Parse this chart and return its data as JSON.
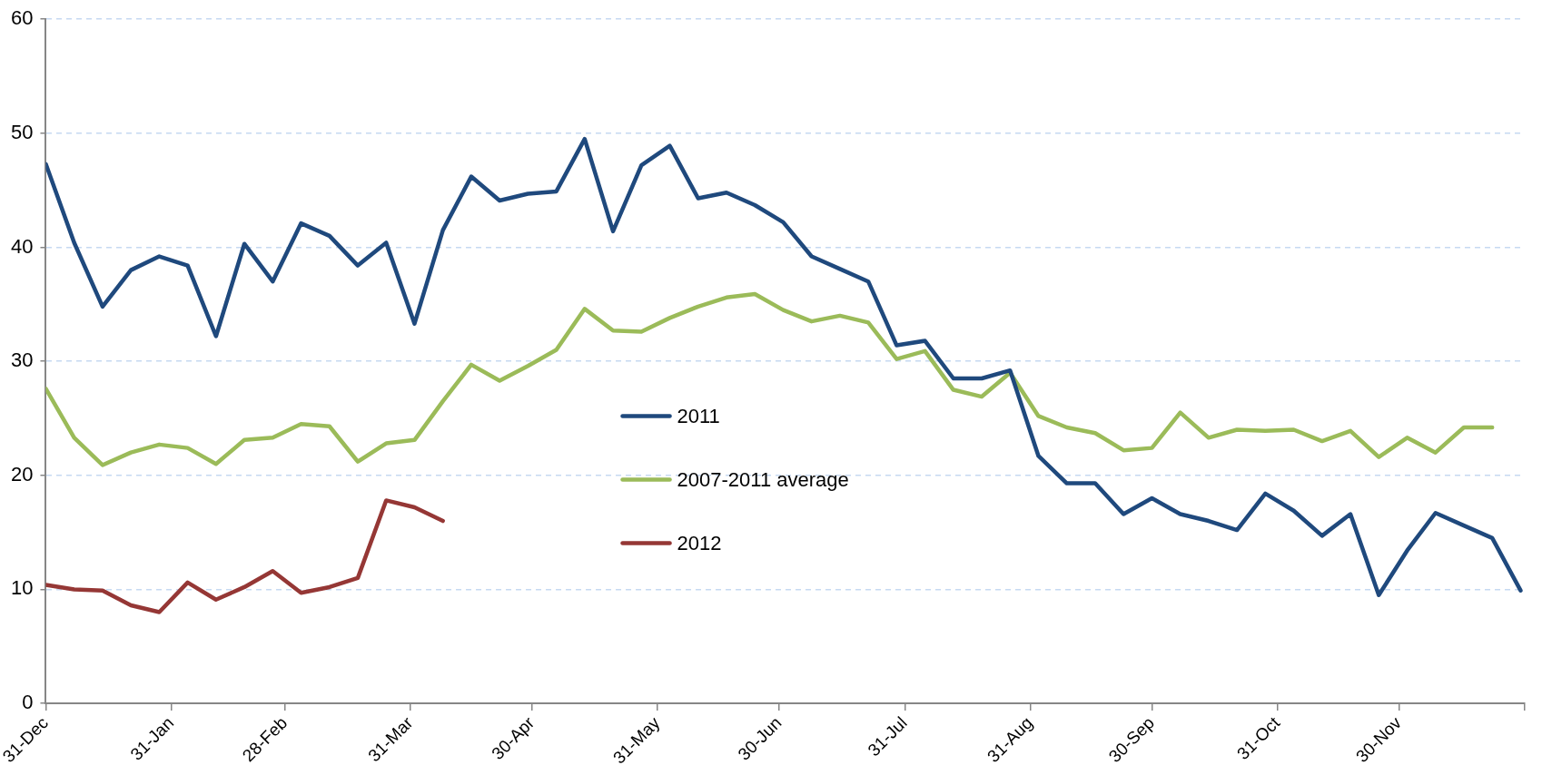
{
  "chart_data": {
    "type": "line",
    "x": [
      "2010-12-31",
      "2011-01-07",
      "2011-01-14",
      "2011-01-21",
      "2011-01-28",
      "2011-02-04",
      "2011-02-11",
      "2011-02-18",
      "2011-02-25",
      "2011-03-04",
      "2011-03-11",
      "2011-03-18",
      "2011-03-25",
      "2011-04-01",
      "2011-04-08",
      "2011-04-15",
      "2011-04-22",
      "2011-04-29",
      "2011-05-06",
      "2011-05-13",
      "2011-05-20",
      "2011-05-27",
      "2011-06-03",
      "2011-06-10",
      "2011-06-17",
      "2011-06-24",
      "2011-07-01",
      "2011-07-08",
      "2011-07-15",
      "2011-07-22",
      "2011-07-29",
      "2011-08-05",
      "2011-08-12",
      "2011-08-19",
      "2011-08-26",
      "2011-09-02",
      "2011-09-09",
      "2011-09-16",
      "2011-09-23",
      "2011-09-30",
      "2011-10-07",
      "2011-10-14",
      "2011-10-21",
      "2011-10-28",
      "2011-11-04",
      "2011-11-11",
      "2011-11-18",
      "2011-11-25",
      "2011-12-02",
      "2011-12-09",
      "2011-12-16",
      "2011-12-23",
      "2011-12-30"
    ],
    "series": [
      {
        "name": "2011",
        "color": "#1f497d",
        "values": [
          47.3,
          40.4,
          34.8,
          38.0,
          39.2,
          38.4,
          32.2,
          40.3,
          37.0,
          42.1,
          41.0,
          38.4,
          40.4,
          33.3,
          41.5,
          46.2,
          44.1,
          44.7,
          44.9,
          49.5,
          41.4,
          47.2,
          48.9,
          44.3,
          44.8,
          43.7,
          42.2,
          39.2,
          38.1,
          37.0,
          31.4,
          31.8,
          28.5,
          28.5,
          29.2,
          21.7,
          19.3,
          19.3,
          16.6,
          18.0,
          16.6,
          16.0,
          15.2,
          18.4,
          16.9,
          14.7,
          16.6,
          9.5,
          13.4,
          16.7,
          15.6,
          14.5,
          9.9
        ]
      },
      {
        "name": "2007-2011 average",
        "color": "#9bbb59",
        "values": [
          27.6,
          23.3,
          20.9,
          22.0,
          22.7,
          22.4,
          21.0,
          23.1,
          23.3,
          24.5,
          24.3,
          21.2,
          22.8,
          23.1,
          26.5,
          29.7,
          28.3,
          29.6,
          31.0,
          34.6,
          32.7,
          32.6,
          33.8,
          34.8,
          35.6,
          35.9,
          34.5,
          33.5,
          34.0,
          33.4,
          30.2,
          30.9,
          27.5,
          26.9,
          29.0,
          25.2,
          24.2,
          23.7,
          22.2,
          22.4,
          25.5,
          23.3,
          24.0,
          23.9,
          24.0,
          23.0,
          23.9,
          21.6,
          23.3,
          22.0,
          24.2,
          24.2,
          null
        ]
      },
      {
        "name": "2012",
        "color": "#953735",
        "values": [
          10.4,
          10.0,
          9.9,
          8.6,
          8.0,
          10.6,
          9.1,
          10.2,
          11.6,
          9.7,
          10.2,
          11.0,
          17.8,
          17.2,
          16.0,
          null,
          null,
          null,
          null,
          null,
          null,
          null,
          null,
          null,
          null,
          null,
          null,
          null,
          null,
          null,
          null,
          null,
          null,
          null,
          null,
          null,
          null,
          null,
          null,
          null,
          null,
          null,
          null,
          null,
          null,
          null,
          null,
          null,
          null,
          null,
          null,
          null,
          null
        ]
      }
    ],
    "xlim": [
      "2010-12-31",
      "2011-12-31"
    ],
    "xticks": [
      {
        "value": "2010-12-31",
        "label": "31-Dec"
      },
      {
        "value": "2011-01-31",
        "label": "31-Jan"
      },
      {
        "value": "2011-02-28",
        "label": "28-Feb"
      },
      {
        "value": "2011-03-31",
        "label": "31-Mar"
      },
      {
        "value": "2011-04-30",
        "label": "30-Apr"
      },
      {
        "value": "2011-05-31",
        "label": "31-May"
      },
      {
        "value": "2011-06-30",
        "label": "30-Jun"
      },
      {
        "value": "2011-07-31",
        "label": "31-Jul"
      },
      {
        "value": "2011-08-31",
        "label": "31-Aug"
      },
      {
        "value": "2011-09-30",
        "label": "30-Sep"
      },
      {
        "value": "2011-10-31",
        "label": "31-Oct"
      },
      {
        "value": "2011-11-30",
        "label": "30-Nov"
      },
      {
        "value": "2011-12-31",
        "label": null
      }
    ],
    "ylim": [
      0,
      60
    ],
    "yticks": [
      0,
      10,
      20,
      30,
      40,
      50,
      60
    ],
    "grid": "y",
    "legend": "center",
    "marker": "none",
    "line_style": "solid"
  }
}
